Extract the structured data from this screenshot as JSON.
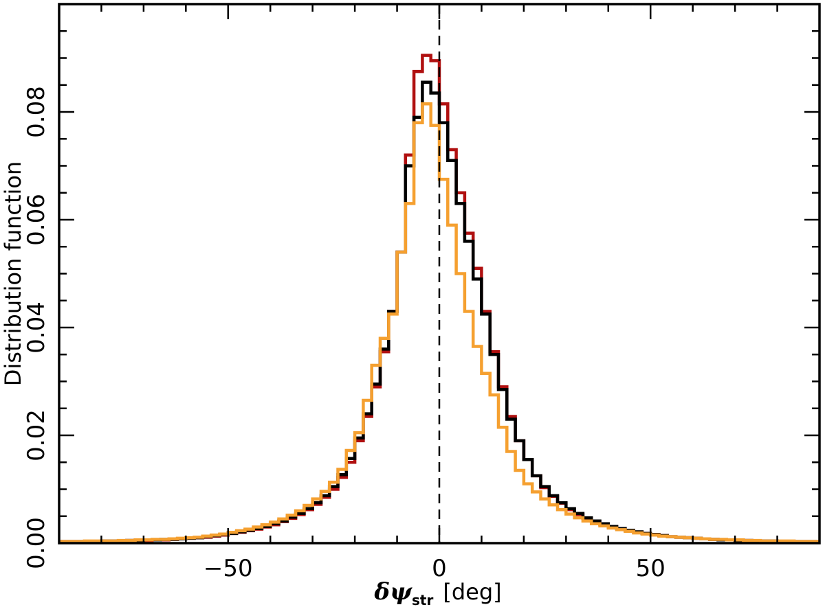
{
  "chart_data": {
    "type": "line",
    "step": true,
    "title": "",
    "xlabel": {
      "symbol": "δψ",
      "subscript": "str",
      "unit": "[deg]"
    },
    "ylabel": "Distribution function",
    "xlim": [
      -90,
      90
    ],
    "ylim": [
      0,
      0.1
    ],
    "xticks": [
      -50,
      0,
      50
    ],
    "xtick_labels": [
      "−50",
      "0",
      "50"
    ],
    "yticks": [
      0.0,
      0.02,
      0.04,
      0.06,
      0.08
    ],
    "ytick_labels": [
      "0.00",
      "0.02",
      "0.04",
      "0.06",
      "0.08"
    ],
    "reference_line": {
      "x": 0,
      "style": "dashed"
    },
    "grid": false,
    "bin_width": 2,
    "x": [
      -90,
      -88,
      -86,
      -84,
      -82,
      -80,
      -78,
      -76,
      -74,
      -72,
      -70,
      -68,
      -66,
      -64,
      -62,
      -60,
      -58,
      -56,
      -54,
      -52,
      -50,
      -48,
      -46,
      -44,
      -42,
      -40,
      -38,
      -36,
      -34,
      -32,
      -30,
      -28,
      -26,
      -24,
      -22,
      -20,
      -18,
      -16,
      -14,
      -12,
      -10,
      -8,
      -6,
      -4,
      -2,
      0,
      2,
      4,
      6,
      8,
      10,
      12,
      14,
      16,
      18,
      20,
      22,
      24,
      26,
      28,
      30,
      32,
      34,
      36,
      38,
      40,
      42,
      44,
      46,
      48,
      50,
      52,
      54,
      56,
      58,
      60,
      62,
      64,
      66,
      68,
      70,
      72,
      74,
      76,
      78,
      80,
      82,
      84,
      86,
      88
    ],
    "series": [
      {
        "color": "#b01010",
        "values": [
          0.0003,
          0.0003,
          0.0003,
          0.0003,
          0.0003,
          0.0004,
          0.0004,
          0.0004,
          0.0005,
          0.0005,
          0.0005,
          0.0006,
          0.0006,
          0.0007,
          0.0008,
          0.0009,
          0.001,
          0.0011,
          0.0013,
          0.0015,
          0.0018,
          0.002,
          0.0023,
          0.0026,
          0.003,
          0.0034,
          0.004,
          0.0046,
          0.0053,
          0.0062,
          0.0072,
          0.0085,
          0.01,
          0.0122,
          0.015,
          0.019,
          0.0235,
          0.029,
          0.0355,
          0.043,
          0.054,
          0.072,
          0.0875,
          0.0905,
          0.0895,
          0.0815,
          0.073,
          0.065,
          0.0575,
          0.051,
          0.043,
          0.0355,
          0.029,
          0.0235,
          0.019,
          0.0155,
          0.0125,
          0.0103,
          0.0087,
          0.0074,
          0.0062,
          0.0053,
          0.0046,
          0.004,
          0.0035,
          0.003,
          0.0026,
          0.0023,
          0.002,
          0.0018,
          0.0016,
          0.0014,
          0.0012,
          0.0011,
          0.001,
          0.0009,
          0.0008,
          0.0007,
          0.0006,
          0.0006,
          0.0005,
          0.0005,
          0.0004,
          0.0004,
          0.0004,
          0.0003,
          0.0003,
          0.0003,
          0.0003,
          0.0003
        ]
      },
      {
        "color": "#000000",
        "values": [
          0.0003,
          0.0003,
          0.0003,
          0.0003,
          0.0003,
          0.0004,
          0.0004,
          0.0004,
          0.0005,
          0.0005,
          0.0006,
          0.0006,
          0.0007,
          0.0007,
          0.0008,
          0.0009,
          0.001,
          0.0012,
          0.0014,
          0.0016,
          0.0018,
          0.0021,
          0.0024,
          0.0027,
          0.0031,
          0.0036,
          0.0041,
          0.0048,
          0.0055,
          0.0064,
          0.0075,
          0.0088,
          0.0105,
          0.0127,
          0.0157,
          0.0195,
          0.024,
          0.0295,
          0.036,
          0.043,
          0.054,
          0.07,
          0.079,
          0.0855,
          0.0835,
          0.078,
          0.071,
          0.063,
          0.056,
          0.049,
          0.0425,
          0.035,
          0.0285,
          0.023,
          0.019,
          0.0155,
          0.0125,
          0.0105,
          0.0088,
          0.0075,
          0.0064,
          0.0055,
          0.0047,
          0.0041,
          0.0036,
          0.0031,
          0.0027,
          0.0024,
          0.0021,
          0.0018,
          0.0016,
          0.0014,
          0.0012,
          0.0011,
          0.001,
          0.0009,
          0.0008,
          0.0007,
          0.0006,
          0.0006,
          0.0005,
          0.0005,
          0.0004,
          0.0004,
          0.0004,
          0.0003,
          0.0003,
          0.0003,
          0.0003,
          0.0003
        ]
      },
      {
        "color": "#f5a030",
        "values": [
          0.0003,
          0.0003,
          0.0003,
          0.0004,
          0.0004,
          0.0004,
          0.0004,
          0.0005,
          0.0005,
          0.0006,
          0.0006,
          0.0007,
          0.0007,
          0.0008,
          0.0009,
          0.001,
          0.0011,
          0.0013,
          0.0015,
          0.0017,
          0.002,
          0.0023,
          0.0026,
          0.003,
          0.0034,
          0.0039,
          0.0045,
          0.0052,
          0.006,
          0.007,
          0.0082,
          0.0096,
          0.0113,
          0.0137,
          0.0172,
          0.0205,
          0.0265,
          0.033,
          0.038,
          0.0425,
          0.054,
          0.063,
          0.078,
          0.0815,
          0.0775,
          0.0675,
          0.059,
          0.05,
          0.043,
          0.0365,
          0.0315,
          0.0275,
          0.0215,
          0.017,
          0.0135,
          0.011,
          0.0095,
          0.0082,
          0.0071,
          0.0062,
          0.0054,
          0.0047,
          0.0041,
          0.0036,
          0.0032,
          0.0028,
          0.0025,
          0.0022,
          0.0019,
          0.0017,
          0.0015,
          0.0013,
          0.0012,
          0.0011,
          0.001,
          0.0009,
          0.0008,
          0.0007,
          0.0007,
          0.0006,
          0.0006,
          0.0005,
          0.0005,
          0.0004,
          0.0004,
          0.0004,
          0.0004,
          0.0003,
          0.0003,
          0.0003
        ]
      }
    ]
  }
}
